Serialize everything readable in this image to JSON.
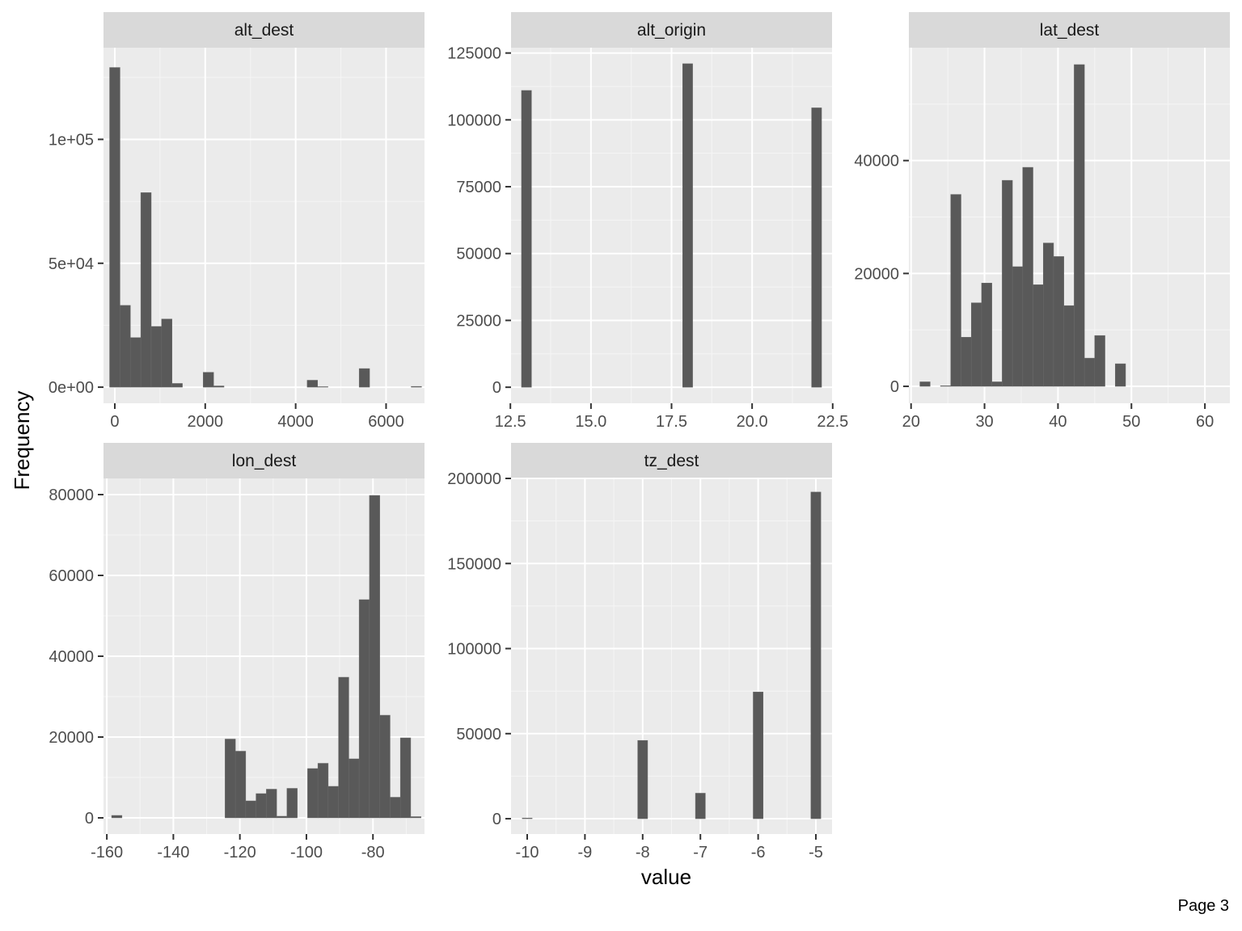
{
  "figure": {
    "ylabel": "Frequency",
    "xlabel": "value",
    "footer": "Page 3"
  },
  "colors": {
    "panel_bg": "#ebebeb",
    "strip_bg": "#d9d9d9",
    "bar": "#595959",
    "grid_major": "#ffffff",
    "text": "#4d4d4d",
    "title_text": "#1a1a1a"
  },
  "chart_data": [
    {
      "type": "bar",
      "title": "alt_dest",
      "xlim": [
        -250,
        6850
      ],
      "ylim": [
        -6500,
        137000
      ],
      "xticks": [
        0,
        2000,
        4000,
        6000
      ],
      "xtick_labels": [
        "0",
        "2000",
        "4000",
        "6000"
      ],
      "yticks": [
        0,
        50000,
        100000
      ],
      "ytick_labels": [
        "0e+00",
        "5e+04",
        "1e+05"
      ],
      "bin_width": 230,
      "bins": [
        {
          "x": 0,
          "y": 129000
        },
        {
          "x": 230,
          "y": 33000
        },
        {
          "x": 460,
          "y": 20000
        },
        {
          "x": 690,
          "y": 78500
        },
        {
          "x": 920,
          "y": 24500
        },
        {
          "x": 1150,
          "y": 27500
        },
        {
          "x": 1380,
          "y": 1500
        },
        {
          "x": 2070,
          "y": 6000
        },
        {
          "x": 2300,
          "y": 500
        },
        {
          "x": 4370,
          "y": 2800
        },
        {
          "x": 4600,
          "y": 200
        },
        {
          "x": 5520,
          "y": 7500
        },
        {
          "x": 6670,
          "y": 300
        }
      ]
    },
    {
      "type": "bar",
      "title": "alt_origin",
      "xlim": [
        12.52,
        22.48
      ],
      "ylim": [
        -6000,
        127000
      ],
      "xticks": [
        12.5,
        15,
        17.5,
        20,
        22.5
      ],
      "xtick_labels": [
        "12.5",
        "15.0",
        "17.5",
        "20.0",
        "22.5"
      ],
      "yticks": [
        0,
        25000,
        50000,
        75000,
        100000,
        125000
      ],
      "ytick_labels": [
        "0",
        "25000",
        "50000",
        "75000",
        "100000",
        "125000"
      ],
      "bin_width": 0.31,
      "bins": [
        {
          "x": 13,
          "y": 111000
        },
        {
          "x": 18,
          "y": 121000
        },
        {
          "x": 22,
          "y": 104500
        }
      ]
    },
    {
      "type": "bar",
      "title": "lat_dest",
      "xlim": [
        19.7,
        63.4
      ],
      "ylim": [
        -3000,
        60000
      ],
      "xticks": [
        20,
        30,
        40,
        50,
        60
      ],
      "xtick_labels": [
        "20",
        "30",
        "40",
        "50",
        "60"
      ],
      "yticks": [
        0,
        20000,
        40000
      ],
      "ytick_labels": [
        "0",
        "20000",
        "40000"
      ],
      "bin_width": 1.4,
      "bins": [
        {
          "x": 21.9,
          "y": 800
        },
        {
          "x": 24.7,
          "y": 100
        },
        {
          "x": 26.1,
          "y": 34000
        },
        {
          "x": 27.5,
          "y": 8700
        },
        {
          "x": 28.9,
          "y": 14800
        },
        {
          "x": 30.3,
          "y": 18300
        },
        {
          "x": 31.7,
          "y": 800
        },
        {
          "x": 33.1,
          "y": 36500
        },
        {
          "x": 34.5,
          "y": 21200
        },
        {
          "x": 35.9,
          "y": 38800
        },
        {
          "x": 37.3,
          "y": 18000
        },
        {
          "x": 38.7,
          "y": 25400
        },
        {
          "x": 40.1,
          "y": 23000
        },
        {
          "x": 41.5,
          "y": 14300
        },
        {
          "x": 42.9,
          "y": 57000
        },
        {
          "x": 44.3,
          "y": 5000
        },
        {
          "x": 45.7,
          "y": 9000
        },
        {
          "x": 48.5,
          "y": 4000
        }
      ]
    },
    {
      "type": "bar",
      "title": "lon_dest",
      "xlim": [
        -161,
        -64.5
      ],
      "ylim": [
        -4000,
        84000
      ],
      "xticks": [
        -160,
        -140,
        -120,
        -100,
        -80
      ],
      "xtick_labels": [
        "-160",
        "-140",
        "-120",
        "-100",
        "-80"
      ],
      "yticks": [
        0,
        20000,
        40000,
        60000,
        80000
      ],
      "ytick_labels": [
        "0",
        "20000",
        "40000",
        "60000",
        "80000"
      ],
      "bin_width": 3.1,
      "bins": [
        {
          "x": -157,
          "y": 600
        },
        {
          "x": -122.9,
          "y": 19500
        },
        {
          "x": -119.8,
          "y": 16500
        },
        {
          "x": -116.7,
          "y": 4200
        },
        {
          "x": -113.6,
          "y": 6000
        },
        {
          "x": -110.5,
          "y": 7100
        },
        {
          "x": -107.4,
          "y": 400
        },
        {
          "x": -104.3,
          "y": 7300
        },
        {
          "x": -98.1,
          "y": 12200
        },
        {
          "x": -95,
          "y": 13500
        },
        {
          "x": -91.9,
          "y": 7800
        },
        {
          "x": -88.8,
          "y": 34800
        },
        {
          "x": -85.7,
          "y": 14600
        },
        {
          "x": -82.6,
          "y": 54000
        },
        {
          "x": -79.5,
          "y": 79800
        },
        {
          "x": -76.4,
          "y": 25400
        },
        {
          "x": -73.3,
          "y": 5100
        },
        {
          "x": -70.2,
          "y": 19800
        },
        {
          "x": -67.1,
          "y": 300
        }
      ]
    },
    {
      "type": "bar",
      "title": "tz_dest",
      "xlim": [
        -10.28,
        -4.72
      ],
      "ylim": [
        -9000,
        200000
      ],
      "xticks": [
        -10,
        -9,
        -8,
        -7,
        -6,
        -5
      ],
      "xtick_labels": [
        "-10",
        "-9",
        "-8",
        "-7",
        "-6",
        "-5"
      ],
      "yticks": [
        0,
        50000,
        100000,
        150000,
        200000
      ],
      "ytick_labels": [
        "0",
        "50000",
        "100000",
        "150000",
        "200000"
      ],
      "bin_width": 0.172,
      "bins": [
        {
          "x": -10,
          "y": 400
        },
        {
          "x": -8,
          "y": 46000
        },
        {
          "x": -7,
          "y": 15000
        },
        {
          "x": -6,
          "y": 74500
        },
        {
          "x": -5,
          "y": 192000
        }
      ]
    }
  ]
}
